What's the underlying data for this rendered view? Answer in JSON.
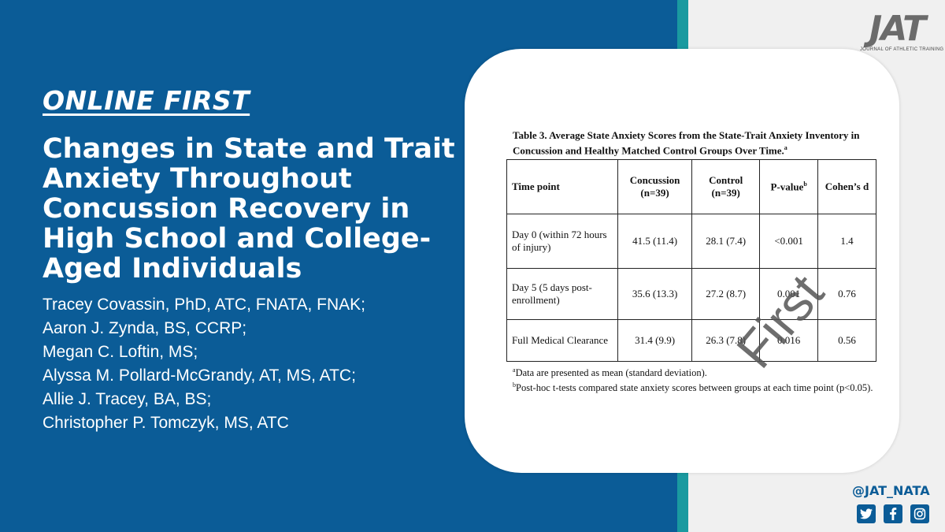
{
  "header": {
    "section_label": "ONLINE FIRST",
    "title": "Changes in State and Trait Anxiety Throughout Concussion Recovery in High School and College-Aged Individuals"
  },
  "authors": [
    "Tracey Covassin, PhD, ATC, FNATA, FNAK;",
    "Aaron J. Zynda, BS, CCRP;",
    "Megan C. Loftin, MS;",
    "Alyssa M. Pollard-McGrandy, AT, MS, ATC;",
    "Allie J. Tracey, BA, BS;",
    "Christopher P. Tomczyk, MS, ATC"
  ],
  "table": {
    "caption": "Table 3. Average State Anxiety Scores from the State-Trait Anxiety Inventory in Concussion and Healthy Matched Control Groups Over Time.",
    "caption_sup": "a",
    "columns": [
      {
        "label": "Time point",
        "sub": "",
        "sup": ""
      },
      {
        "label": "Concussion",
        "sub": "(n=39)",
        "sup": ""
      },
      {
        "label": "Control",
        "sub": "(n=39)",
        "sup": ""
      },
      {
        "label": "P-value",
        "sub": "",
        "sup": "b"
      },
      {
        "label": "Cohen’s d",
        "sub": "",
        "sup": ""
      }
    ],
    "rows": [
      {
        "time_point": "Day 0 (within 72 hours of injury)",
        "concussion": "41.5 (11.4)",
        "control": "28.1 (7.4)",
        "p_value": "<0.001",
        "cohens_d": "1.4"
      },
      {
        "time_point": "Day 5 (5 days post-enrollment)",
        "concussion": "35.6 (13.3)",
        "control": "27.2 (8.7)",
        "p_value": "0.001",
        "cohens_d": "0.76"
      },
      {
        "time_point": "Full Medical Clearance",
        "concussion": "31.4 (9.9)",
        "control": "26.3 (7.8)",
        "p_value": "0.016",
        "cohens_d": "0.56"
      }
    ],
    "footnotes": [
      {
        "mark": "a",
        "text": "Data are presented as mean (standard deviation)."
      },
      {
        "mark": "b",
        "text": "Post-hoc t-tests compared state anxiety scores between groups at each time point (p<0.05)."
      }
    ],
    "watermark": "First"
  },
  "brand": {
    "logo_text": "JAT",
    "logo_subtitle": "JOURNAL OF ATHLETIC TRAINING",
    "handle": "@JAT_NATA",
    "socials": [
      "twitter-icon",
      "facebook-icon",
      "instagram-icon"
    ],
    "colors": {
      "primary": "#0b5c97",
      "accent": "#1a9aa0"
    }
  }
}
